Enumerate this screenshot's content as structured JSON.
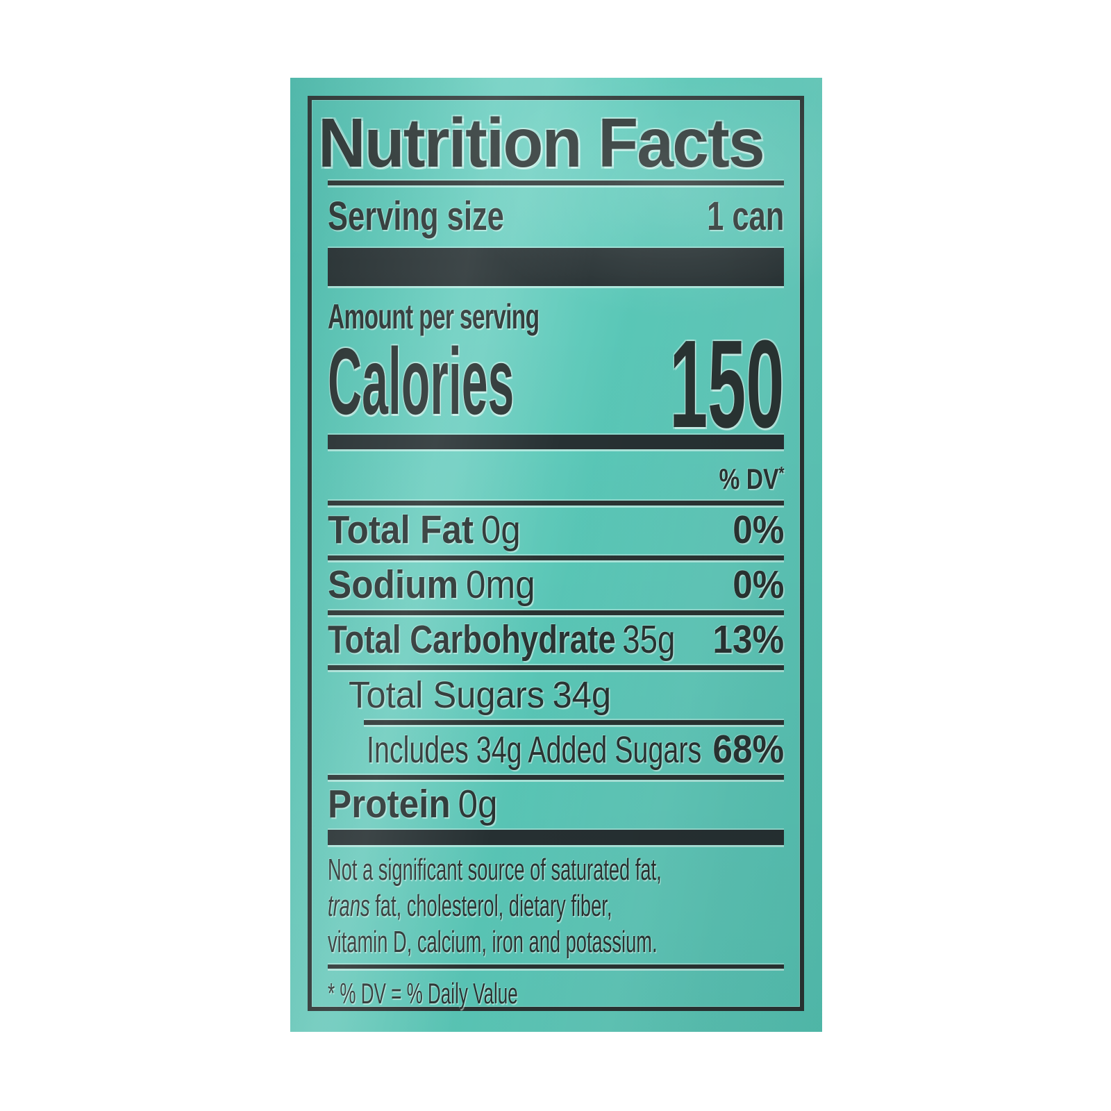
{
  "colors": {
    "teal": "#58c7b7",
    "teal_highlight": "#7fd5c8",
    "ink": "#2a3433"
  },
  "label": {
    "title": "Nutrition Facts",
    "serving_size_label": "Serving size",
    "serving_size_value": "1 can",
    "amount_per_serving": "Amount per serving",
    "calories_label": "Calories",
    "calories_value": "150",
    "dv_header": "% DV",
    "dv_header_mark": "*",
    "nutrient_rows": [
      {
        "name": "Total Fat",
        "amount": "0g",
        "dv": "0%"
      },
      {
        "name": "Sodium",
        "amount": "0mg",
        "dv": "0%"
      },
      {
        "name": "Total Carbohydrate",
        "amount": "35g",
        "dv": "13%"
      },
      {
        "name": "Total Sugars",
        "amount": "34g",
        "dv": ""
      },
      {
        "name": "Includes 34g Added Sugars",
        "amount": "",
        "dv": "68%"
      },
      {
        "name": "Protein",
        "amount": "0g",
        "dv": ""
      }
    ],
    "footnote": {
      "line1": "Not a significant source of saturated fat,",
      "line2_italic": "trans",
      "line2_rest": " fat, cholesterol, dietary fiber,",
      "line3": "vitamin D, calcium, iron and potassium."
    },
    "daily_value_note": "* % DV = % Daily Value"
  }
}
